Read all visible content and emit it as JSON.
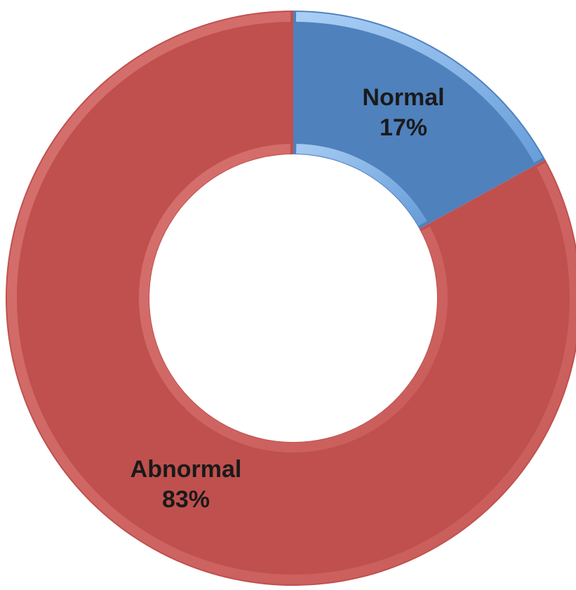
{
  "chart_data": {
    "type": "pie",
    "style": "donut",
    "title": "",
    "slices": [
      {
        "label": "Normal",
        "value": 17,
        "display": "17%",
        "color": "#4f81bd"
      },
      {
        "label": "Abnormal",
        "value": 83,
        "display": "83%",
        "color": "#c0504d"
      }
    ],
    "start": "top",
    "direction": "clockwise",
    "legend": "none"
  }
}
